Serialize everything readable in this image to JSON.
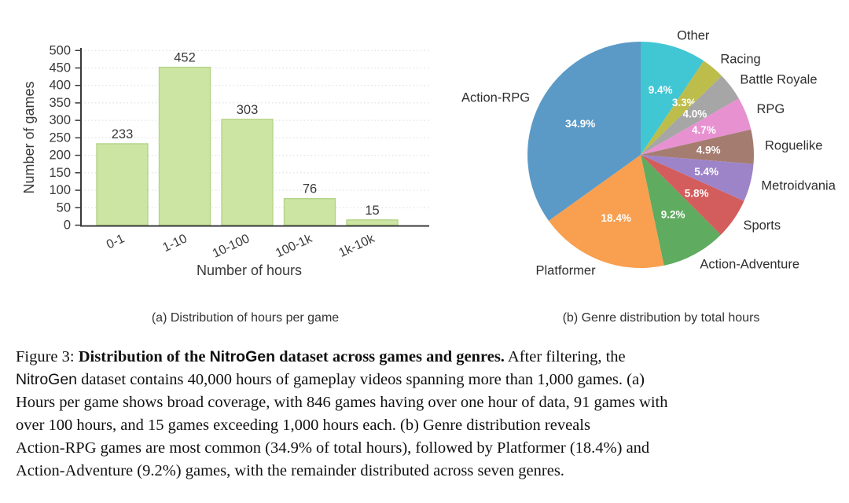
{
  "subcaptions": {
    "a": "(a) Distribution of hours per game",
    "b": "(b) Genre distribution by total hours"
  },
  "caption": {
    "lines": [
      [
        {
          "text": "Figure 3: ",
          "style": "serif"
        },
        {
          "text": "Distribution of the ",
          "style": "serif-bold"
        },
        {
          "text": "NitroGen",
          "style": "sans-bold"
        },
        {
          "text": " dataset across games and genres.",
          "style": "serif-bold"
        },
        {
          "text": " After filtering, the",
          "style": "serif"
        }
      ],
      [
        {
          "text": "NitroGen",
          "style": "sans"
        },
        {
          "text": " dataset contains 40,000 hours of gameplay videos spanning more than 1,000 games. (a)",
          "style": "serif"
        }
      ],
      [
        {
          "text": "Hours per game shows broad coverage, with 846 games having over one hour of data, 91 games with",
          "style": "serif"
        }
      ],
      [
        {
          "text": "over 100 hours, and 15 games exceeding 1,000 hours each. (b) Genre distribution reveals",
          "style": "serif"
        }
      ],
      [
        {
          "text": "Action-RPG games are most common (34.9% of total hours), followed by Platformer (18.4%) and",
          "style": "serif"
        }
      ],
      [
        {
          "text": "Action-Adventure (9.2%) games, with the remainder distributed across seven genres.",
          "style": "serif"
        }
      ]
    ]
  },
  "chart_data": [
    {
      "type": "bar",
      "title": "",
      "categories": [
        "0-1",
        "1-10",
        "10-100",
        "100-1k",
        "1k-10k"
      ],
      "values": [
        233,
        452,
        303,
        76,
        15
      ],
      "xlabel": "Number of hours",
      "ylabel": "Number of games",
      "ylim": [
        0,
        500
      ],
      "ytick_step": 50,
      "grid": true,
      "bar_fill": "#cde5a2",
      "bar_edge": "#b3d488",
      "axis_color": "#3a3a3a",
      "grid_color": "#dcdcdc",
      "text_color": "#3a3a3a"
    },
    {
      "type": "pie",
      "title": "",
      "labels": [
        "Other",
        "Racing",
        "Battle Royale",
        "RPG",
        "Roguelike",
        "Metroidvania",
        "Sports",
        "Action-Adventure",
        "Platformer",
        "Action-RPG"
      ],
      "values": [
        9.4,
        3.3,
        4.0,
        4.7,
        4.9,
        5.4,
        5.8,
        9.2,
        18.4,
        34.9
      ],
      "pct_labels": [
        "9.4%",
        "3.3%",
        "4.0%",
        "4.7%",
        "4.9%",
        "5.4%",
        "5.8%",
        "9.2%",
        "18.4%",
        "34.9%"
      ],
      "colors": [
        "#41c6d3",
        "#bcbd4a",
        "#a6a6a6",
        "#e791d1",
        "#a47d70",
        "#9d84c9",
        "#d35c5c",
        "#5fab60",
        "#f8a04f",
        "#5b9ac7"
      ],
      "start_angle": "12-oclock-clockwise",
      "pct_color": "#ffffff",
      "label_color": "#2f2f2f",
      "legend_position": "none"
    }
  ]
}
